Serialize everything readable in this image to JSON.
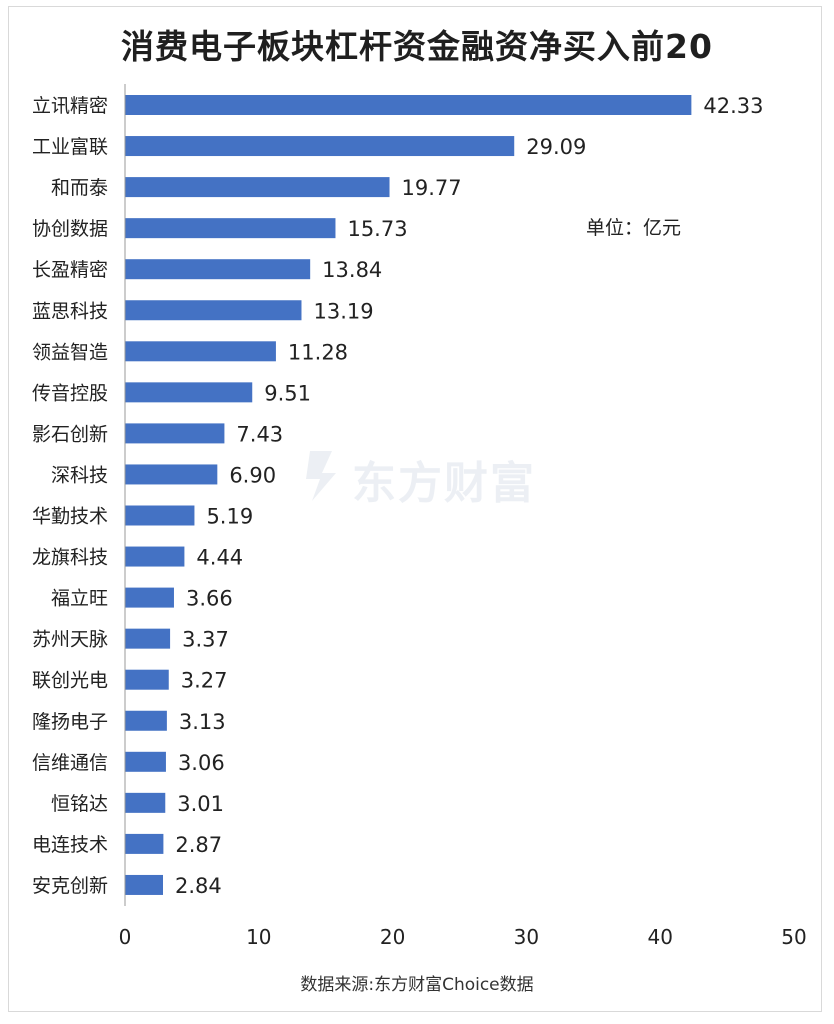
{
  "chart_data": {
    "type": "bar",
    "orientation": "horizontal",
    "title": "消费电子板块杠杆资金融资净买入前20",
    "unit_label": "单位：亿元",
    "source": "数据来源:东方财富Choice数据",
    "watermark": "东方财富",
    "categories": [
      "立讯精密",
      "工业富联",
      "和而泰",
      "协创数据",
      "长盈精密",
      "蓝思科技",
      "领益智造",
      "传音控股",
      "影石创新",
      "深科技",
      "华勤技术",
      "龙旗科技",
      "福立旺",
      "苏州天脉",
      "联创光电",
      "隆扬电子",
      "信维通信",
      "恒铭达",
      "电连技术",
      "安克创新"
    ],
    "values": [
      42.33,
      29.09,
      19.77,
      15.73,
      13.84,
      13.19,
      11.28,
      9.51,
      7.43,
      6.9,
      5.19,
      4.44,
      3.66,
      3.37,
      3.27,
      3.13,
      3.06,
      3.01,
      2.87,
      2.84
    ],
    "value_labels": [
      "42.33",
      "29.09",
      "19.77",
      "15.73",
      "13.84",
      "13.19",
      "11.28",
      "9.51",
      "7.43",
      "6.90",
      "5.19",
      "4.44",
      "3.66",
      "3.37",
      "3.27",
      "3.13",
      "3.06",
      "3.01",
      "2.87",
      "2.84"
    ],
    "xlim": [
      0,
      50
    ],
    "xticks": [
      "0",
      "10",
      "20",
      "30",
      "40",
      "50"
    ],
    "grid": false,
    "bar_color": "#4472c4"
  }
}
